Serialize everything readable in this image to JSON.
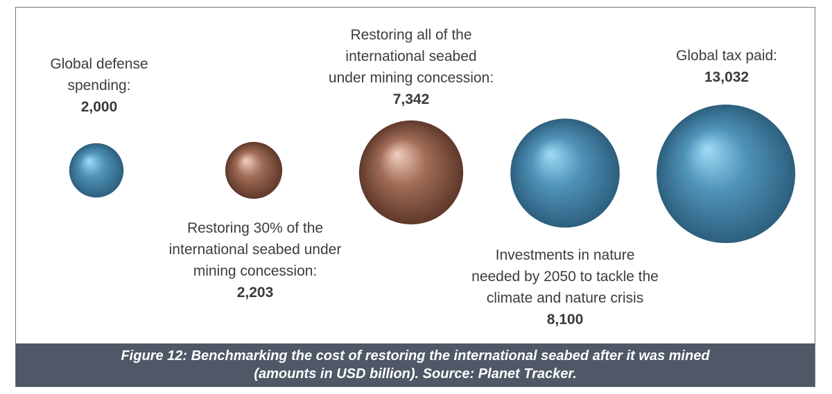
{
  "chart_data": {
    "type": "bubble",
    "unit": "USD billion",
    "items": [
      {
        "label_lines": [
          "Global defense",
          "spending:"
        ],
        "value_text": "2,000",
        "value": 2000,
        "color": "blue"
      },
      {
        "label_lines": [
          "Restoring 30% of the",
          "international seabed under",
          "mining concession:"
        ],
        "value_text": "2,203",
        "value": 2203,
        "color": "brown"
      },
      {
        "label_lines": [
          "Restoring all of the",
          "international seabed",
          "under mining concession:"
        ],
        "value_text": "7,342",
        "value": 7342,
        "color": "brown"
      },
      {
        "label_lines": [
          "Investments in nature",
          "needed by 2050 to tackle the",
          "climate and nature crisis"
        ],
        "value_text": "8,100",
        "value": 8100,
        "color": "blue"
      },
      {
        "label_lines": [
          "Global tax paid:"
        ],
        "value_text": "13,032",
        "value": 13032,
        "color": "blue"
      }
    ]
  },
  "caption": {
    "line1": "Figure 12: Benchmarking the cost of restoring the international seabed after it was mined",
    "line2": "(amounts in USD billion). Source: Planet Tracker."
  },
  "colors": {
    "blue": [
      "#9fdcf6",
      "#4f93b8",
      "#2d5f7e"
    ],
    "brown": [
      "#f2cfc0",
      "#a06c56",
      "#5e382a"
    ],
    "caption_bg": "#4e5866"
  }
}
